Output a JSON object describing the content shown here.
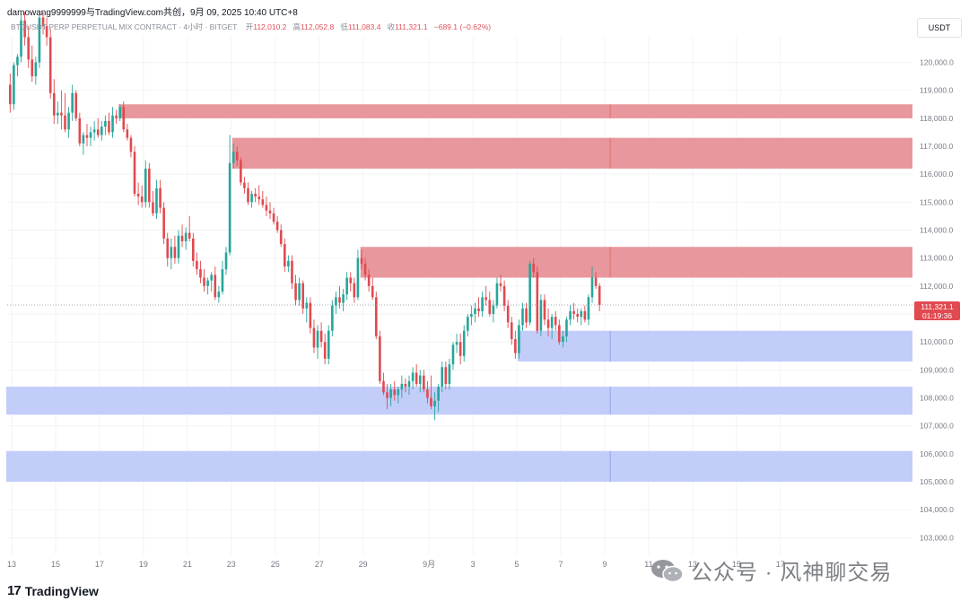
{
  "header": {
    "title": "damowang9999999与TradingView.com共创，9月 09, 2025 10:40 UTC+8"
  },
  "symbol_bar": {
    "symbol": "BTCUSDT PERP PERPETUAL MIX CONTRACT · 4小时 · BITGET",
    "open_label": "开",
    "open_value": "112,010.2",
    "high_label": "高",
    "high_value": "112,052.8",
    "low_label": "低",
    "low_value": "111,083.4",
    "close_label": "收",
    "close_value": "111,321.1",
    "change_value": "−689.1 (−0.62%)"
  },
  "currency_button": "USDT",
  "last_price_tag": {
    "price": "111,321.1",
    "countdown": "01:19:36"
  },
  "brand": {
    "logo_mark": "17",
    "name": "TradingView"
  },
  "watermark": {
    "text": "公众号 · 风神聊交易"
  },
  "colors": {
    "up": "#26a69a",
    "down": "#e04a50",
    "supply_zone": "#e8979c",
    "demand_zone": "#c3cdfa",
    "last_price": "#e04a50"
  },
  "chart_data": {
    "type": "candlestick",
    "timeframe": "4h",
    "ylim": [
      102500,
      121800
    ],
    "y_ticks": [
      103000,
      104000,
      105000,
      106000,
      107000,
      108000,
      109000,
      110000,
      111000,
      112000,
      113000,
      114000,
      115000,
      116000,
      117000,
      118000,
      119000,
      120000
    ],
    "y_tick_labels": [
      "103,000.0",
      "104,000.0",
      "105,000.0",
      "106,000.0",
      "107,000.0",
      "108,000.0",
      "109,000.0",
      "110,000.0",
      "111,000.0",
      "112,000.0",
      "113,000.0",
      "114,000.0",
      "115,000.0",
      "116,000.0",
      "117,000.0",
      "118,000.0",
      "119,000.0",
      "120,000.0"
    ],
    "x_ticks": [
      {
        "label": "13",
        "bar": 0
      },
      {
        "label": "15",
        "bar": 12
      },
      {
        "label": "17",
        "bar": 24
      },
      {
        "label": "19",
        "bar": 36
      },
      {
        "label": "21",
        "bar": 48
      },
      {
        "label": "23",
        "bar": 60
      },
      {
        "label": "25",
        "bar": 72
      },
      {
        "label": "27",
        "bar": 84
      },
      {
        "label": "29",
        "bar": 96
      },
      {
        "label": "9月",
        "bar": 114
      },
      {
        "label": "3",
        "bar": 126
      },
      {
        "label": "5",
        "bar": 138
      },
      {
        "label": "7",
        "bar": 150
      },
      {
        "label": "9",
        "bar": 162
      },
      {
        "label": "11",
        "bar": 174
      },
      {
        "label": "13",
        "bar": 186
      },
      {
        "label": "15",
        "bar": 198
      },
      {
        "label": "17",
        "bar": 210
      }
    ],
    "last_price": 111321.1,
    "zones": [
      {
        "kind": "supply",
        "from_bar": 30,
        "low": 118000,
        "high": 118500
      },
      {
        "kind": "supply",
        "from_bar": 61,
        "low": 116200,
        "high": 117300
      },
      {
        "kind": "supply",
        "from_bar": 96,
        "low": 112300,
        "high": 113400
      },
      {
        "kind": "demand",
        "from_bar": 139,
        "low": 109300,
        "high": 110400
      },
      {
        "kind": "demand",
        "from_bar": -2,
        "low": 107400,
        "high": 108400
      },
      {
        "kind": "demand",
        "from_bar": -2,
        "low": 105000,
        "high": 106100
      }
    ],
    "zone_divider_bar": 164,
    "candles": [
      [
        119200,
        119600,
        118200,
        118500
      ],
      [
        118500,
        120000,
        118300,
        119900
      ],
      [
        119900,
        120300,
        119500,
        120200
      ],
      [
        120200,
        121700,
        120000,
        121500
      ],
      [
        121500,
        121800,
        120600,
        120900
      ],
      [
        120900,
        121300,
        119800,
        120100
      ],
      [
        120100,
        120600,
        119300,
        119500
      ],
      [
        119500,
        120200,
        119200,
        120000
      ],
      [
        120000,
        121700,
        119800,
        121600
      ],
      [
        121600,
        121800,
        121000,
        121300
      ],
      [
        121300,
        121600,
        120600,
        120900
      ],
      [
        120900,
        121200,
        118700,
        118900
      ],
      [
        118900,
        119400,
        117800,
        118100
      ],
      [
        118100,
        118600,
        117800,
        118200
      ],
      [
        118200,
        119000,
        117600,
        118100
      ],
      [
        118100,
        118900,
        117500,
        117600
      ],
      [
        117600,
        118400,
        117300,
        118200
      ],
      [
        118200,
        119200,
        117900,
        118900
      ],
      [
        118900,
        119000,
        117900,
        118000
      ],
      [
        118000,
        118200,
        117000,
        117100
      ],
      [
        117100,
        117500,
        116700,
        117400
      ],
      [
        117400,
        117800,
        117000,
        117300
      ],
      [
        117300,
        117700,
        117000,
        117500
      ],
      [
        117500,
        117900,
        117200,
        117600
      ],
      [
        117600,
        118000,
        117300,
        117400
      ],
      [
        117400,
        117900,
        117200,
        117700
      ],
      [
        117700,
        118100,
        117400,
        117900
      ],
      [
        117900,
        118200,
        117400,
        117500
      ],
      [
        117500,
        118400,
        117300,
        118100
      ],
      [
        118100,
        118300,
        117800,
        118000
      ],
      [
        118000,
        118500,
        117900,
        118400
      ],
      [
        118400,
        118600,
        117500,
        117600
      ],
      [
        117600,
        117800,
        117200,
        117300
      ],
      [
        117300,
        117400,
        116600,
        116800
      ],
      [
        116800,
        117000,
        115200,
        115300
      ],
      [
        115300,
        115700,
        114900,
        115200
      ],
      [
        115200,
        115600,
        114800,
        115000
      ],
      [
        115000,
        116500,
        114800,
        116200
      ],
      [
        116200,
        116400,
        114800,
        115000
      ],
      [
        115000,
        115400,
        114500,
        114600
      ],
      [
        114600,
        115800,
        114400,
        115500
      ],
      [
        115500,
        115800,
        114600,
        114800
      ],
      [
        114800,
        115000,
        113500,
        113700
      ],
      [
        113700,
        113900,
        112700,
        113000
      ],
      [
        113000,
        113700,
        112600,
        113400
      ],
      [
        113400,
        113800,
        112800,
        113000
      ],
      [
        113000,
        114000,
        112800,
        113800
      ],
      [
        113800,
        114200,
        113400,
        113600
      ],
      [
        113600,
        114100,
        113300,
        113900
      ],
      [
        113900,
        114500,
        113600,
        113700
      ],
      [
        113700,
        113900,
        112700,
        112900
      ],
      [
        112900,
        113200,
        112400,
        112600
      ],
      [
        112600,
        112900,
        112100,
        112300
      ],
      [
        112300,
        112600,
        111800,
        112000
      ],
      [
        112000,
        112300,
        111700,
        112200
      ],
      [
        112200,
        112500,
        111800,
        112400
      ],
      [
        112400,
        112700,
        111500,
        111600
      ],
      [
        111600,
        112000,
        111400,
        111800
      ],
      [
        111800,
        112900,
        111700,
        112600
      ],
      [
        112600,
        113400,
        112400,
        113200
      ],
      [
        113200,
        117400,
        113100,
        116400
      ],
      [
        116400,
        117100,
        116200,
        116800
      ],
      [
        116800,
        117000,
        116300,
        116500
      ],
      [
        116500,
        116600,
        115600,
        115700
      ],
      [
        115700,
        115900,
        115300,
        115500
      ],
      [
        115500,
        115700,
        114900,
        115000
      ],
      [
        115000,
        115400,
        114800,
        115300
      ],
      [
        115300,
        115500,
        115000,
        115200
      ],
      [
        115200,
        115600,
        114900,
        115100
      ],
      [
        115100,
        115400,
        114800,
        114900
      ],
      [
        114900,
        115200,
        114500,
        114700
      ],
      [
        114700,
        115000,
        114400,
        114600
      ],
      [
        114600,
        114800,
        114200,
        114300
      ],
      [
        114300,
        114500,
        113900,
        114000
      ],
      [
        114000,
        114200,
        113400,
        113500
      ],
      [
        113500,
        113700,
        112500,
        112700
      ],
      [
        112700,
        113100,
        112500,
        112900
      ],
      [
        112900,
        113100,
        111900,
        112100
      ],
      [
        112100,
        112400,
        111300,
        111500
      ],
      [
        111500,
        112300,
        111300,
        112100
      ],
      [
        112100,
        112200,
        111000,
        111200
      ],
      [
        111200,
        111600,
        110700,
        111400
      ],
      [
        111400,
        111600,
        110300,
        110500
      ],
      [
        110500,
        110800,
        109600,
        109800
      ],
      [
        109800,
        110600,
        109400,
        110400
      ],
      [
        110400,
        110700,
        109800,
        110000
      ],
      [
        110000,
        110300,
        109200,
        109400
      ],
      [
        109400,
        110600,
        109200,
        110400
      ],
      [
        110400,
        111500,
        110200,
        111300
      ],
      [
        111300,
        111800,
        111000,
        111600
      ],
      [
        111600,
        112000,
        111200,
        111400
      ],
      [
        111400,
        111900,
        111100,
        111700
      ],
      [
        111700,
        112500,
        111500,
        112300
      ],
      [
        112300,
        112500,
        111800,
        112100
      ],
      [
        112100,
        112300,
        111400,
        111600
      ],
      [
        111600,
        113300,
        111500,
        113000
      ],
      [
        113000,
        113300,
        112600,
        112800
      ],
      [
        112800,
        113000,
        112200,
        112400
      ],
      [
        112400,
        112600,
        111800,
        112000
      ],
      [
        112000,
        112300,
        111500,
        111600
      ],
      [
        111600,
        111800,
        110100,
        110200
      ],
      [
        110200,
        110400,
        108500,
        108600
      ],
      [
        108600,
        108900,
        108100,
        108200
      ],
      [
        108200,
        108500,
        107600,
        108000
      ],
      [
        108000,
        108500,
        107700,
        108300
      ],
      [
        108300,
        108600,
        107900,
        108100
      ],
      [
        108100,
        108400,
        107800,
        108300
      ],
      [
        108300,
        108800,
        108000,
        108500
      ],
      [
        108500,
        108700,
        108200,
        108400
      ],
      [
        108400,
        108800,
        108100,
        108600
      ],
      [
        108600,
        109100,
        108300,
        108900
      ],
      [
        108900,
        109200,
        108400,
        108500
      ],
      [
        108500,
        109000,
        108200,
        108800
      ],
      [
        108800,
        109000,
        108200,
        108300
      ],
      [
        108300,
        108600,
        107800,
        108000
      ],
      [
        108000,
        108800,
        107600,
        107700
      ],
      [
        107700,
        108200,
        107200,
        107900
      ],
      [
        107900,
        108500,
        107500,
        108400
      ],
      [
        108400,
        109300,
        108200,
        109100
      ],
      [
        109100,
        109300,
        108300,
        108500
      ],
      [
        108500,
        109400,
        108300,
        109200
      ],
      [
        109200,
        110000,
        109000,
        109900
      ],
      [
        109900,
        110300,
        109600,
        110000
      ],
      [
        110000,
        110300,
        109200,
        109500
      ],
      [
        109500,
        110600,
        109300,
        110400
      ],
      [
        110400,
        111000,
        110200,
        110900
      ],
      [
        110900,
        111300,
        110600,
        111000
      ],
      [
        111000,
        111400,
        110700,
        111200
      ],
      [
        111200,
        111600,
        110900,
        111100
      ],
      [
        111100,
        111800,
        110900,
        111600
      ],
      [
        111600,
        112000,
        111300,
        111500
      ],
      [
        111500,
        111800,
        110900,
        111000
      ],
      [
        111000,
        111500,
        110700,
        111300
      ],
      [
        111300,
        112300,
        111200,
        112100
      ],
      [
        112100,
        112400,
        111800,
        112000
      ],
      [
        112000,
        112200,
        111100,
        111300
      ],
      [
        111300,
        111500,
        110500,
        110700
      ],
      [
        110700,
        110900,
        109900,
        110100
      ],
      [
        110100,
        110400,
        109400,
        109600
      ],
      [
        109600,
        110800,
        109400,
        110600
      ],
      [
        110600,
        111400,
        110400,
        111200
      ],
      [
        111200,
        111400,
        110500,
        110700
      ],
      [
        110700,
        112900,
        110600,
        112800
      ],
      [
        112800,
        113000,
        112300,
        112500
      ],
      [
        112500,
        112700,
        110300,
        110400
      ],
      [
        110400,
        111700,
        110200,
        111500
      ],
      [
        111500,
        111700,
        110600,
        110800
      ],
      [
        110800,
        111200,
        110200,
        110500
      ],
      [
        110500,
        111000,
        110100,
        110900
      ],
      [
        110900,
        111100,
        110400,
        110600
      ],
      [
        110600,
        110800,
        109900,
        110000
      ],
      [
        110000,
        110400,
        109800,
        110200
      ],
      [
        110200,
        110900,
        110000,
        110800
      ],
      [
        110800,
        111300,
        110600,
        111100
      ],
      [
        111100,
        111400,
        110800,
        111000
      ],
      [
        111000,
        111200,
        110700,
        110900
      ],
      [
        110900,
        111200,
        110600,
        111100
      ],
      [
        111100,
        111300,
        110700,
        110800
      ],
      [
        110800,
        111700,
        110600,
        111600
      ],
      [
        111600,
        112700,
        111400,
        112300
      ],
      [
        112300,
        112500,
        111900,
        112000
      ],
      [
        112000,
        112100,
        111100,
        111321.1
      ]
    ]
  }
}
